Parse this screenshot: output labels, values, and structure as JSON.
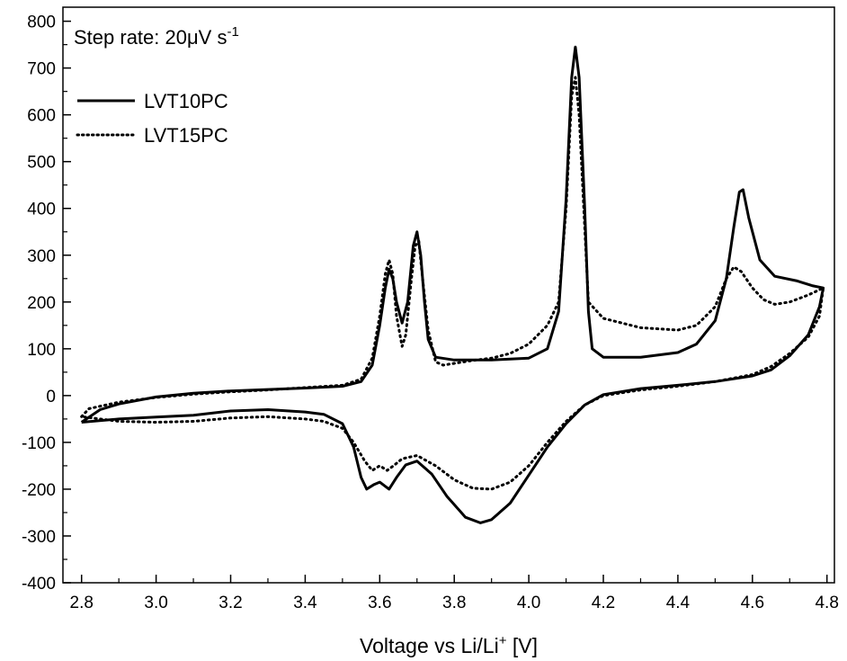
{
  "chart_data": {
    "type": "line",
    "title": "",
    "annotation": {
      "prefix": "Step rate: 20",
      "mu": "μ",
      "unit": "V s",
      "exponent": "-1"
    },
    "xlabel": {
      "prefix": "Voltage vs Li/Li",
      "sup": "+",
      "suffix": " [V]"
    },
    "ylabel": "",
    "xlim": [
      2.75,
      4.82
    ],
    "ylim": [
      -400,
      830
    ],
    "xticks": [
      2.8,
      3.0,
      3.2,
      3.4,
      3.6,
      3.8,
      4.0,
      4.2,
      4.4,
      4.6,
      4.8
    ],
    "xtick_labels": [
      "2.8",
      "3.0",
      "3.2",
      "3.4",
      "3.6",
      "3.8",
      "4.0",
      "4.2",
      "4.4",
      "4.6",
      "4.8"
    ],
    "yticks": [
      -400,
      -300,
      -200,
      -100,
      0,
      100,
      200,
      300,
      400,
      500,
      600,
      700,
      800
    ],
    "ytick_labels": [
      "-400",
      "-300",
      "-200",
      "-100",
      "0",
      "100",
      "200",
      "300",
      "400",
      "500",
      "600",
      "700",
      "800"
    ],
    "grid": false,
    "legend_position": "top-left",
    "series": [
      {
        "name": "LVT10PC",
        "style": "solid",
        "color": "#000000",
        "points": [
          [
            2.8,
            -57
          ],
          [
            2.85,
            -30
          ],
          [
            2.9,
            -18
          ],
          [
            3.0,
            -3
          ],
          [
            3.1,
            5
          ],
          [
            3.2,
            10
          ],
          [
            3.3,
            13
          ],
          [
            3.4,
            16
          ],
          [
            3.5,
            20
          ],
          [
            3.55,
            30
          ],
          [
            3.58,
            65
          ],
          [
            3.6,
            150
          ],
          [
            3.615,
            230
          ],
          [
            3.625,
            270
          ],
          [
            3.635,
            250
          ],
          [
            3.645,
            200
          ],
          [
            3.66,
            155
          ],
          [
            3.675,
            200
          ],
          [
            3.69,
            320
          ],
          [
            3.7,
            350
          ],
          [
            3.71,
            300
          ],
          [
            3.72,
            200
          ],
          [
            3.73,
            120
          ],
          [
            3.75,
            82
          ],
          [
            3.8,
            76
          ],
          [
            3.9,
            76
          ],
          [
            4.0,
            80
          ],
          [
            4.05,
            100
          ],
          [
            4.08,
            180
          ],
          [
            4.1,
            420
          ],
          [
            4.115,
            680
          ],
          [
            4.125,
            745
          ],
          [
            4.135,
            680
          ],
          [
            4.15,
            400
          ],
          [
            4.16,
            180
          ],
          [
            4.17,
            100
          ],
          [
            4.2,
            82
          ],
          [
            4.3,
            82
          ],
          [
            4.4,
            92
          ],
          [
            4.45,
            110
          ],
          [
            4.5,
            160
          ],
          [
            4.53,
            250
          ],
          [
            4.55,
            360
          ],
          [
            4.565,
            435
          ],
          [
            4.575,
            440
          ],
          [
            4.59,
            380
          ],
          [
            4.62,
            290
          ],
          [
            4.66,
            255
          ],
          [
            4.72,
            245
          ],
          [
            4.76,
            235
          ],
          [
            4.79,
            230
          ],
          [
            4.78,
            190
          ],
          [
            4.75,
            130
          ],
          [
            4.7,
            85
          ],
          [
            4.65,
            55
          ],
          [
            4.6,
            42
          ],
          [
            4.5,
            30
          ],
          [
            4.4,
            22
          ],
          [
            4.3,
            15
          ],
          [
            4.2,
            2
          ],
          [
            4.15,
            -20
          ],
          [
            4.1,
            -60
          ],
          [
            4.05,
            -110
          ],
          [
            4.0,
            -170
          ],
          [
            3.95,
            -230
          ],
          [
            3.9,
            -265
          ],
          [
            3.87,
            -272
          ],
          [
            3.83,
            -260
          ],
          [
            3.78,
            -215
          ],
          [
            3.74,
            -168
          ],
          [
            3.7,
            -140
          ],
          [
            3.67,
            -148
          ],
          [
            3.645,
            -175
          ],
          [
            3.625,
            -200
          ],
          [
            3.6,
            -185
          ],
          [
            3.585,
            -190
          ],
          [
            3.565,
            -200
          ],
          [
            3.55,
            -175
          ],
          [
            3.53,
            -110
          ],
          [
            3.5,
            -60
          ],
          [
            3.45,
            -40
          ],
          [
            3.4,
            -35
          ],
          [
            3.3,
            -30
          ],
          [
            3.2,
            -33
          ],
          [
            3.1,
            -42
          ],
          [
            3.0,
            -46
          ],
          [
            2.9,
            -50
          ],
          [
            2.8,
            -57
          ]
        ]
      },
      {
        "name": "LVT15PC",
        "style": "dotted",
        "color": "#000000",
        "points": [
          [
            2.8,
            -45
          ],
          [
            2.82,
            -28
          ],
          [
            2.9,
            -14
          ],
          [
            3.0,
            -4
          ],
          [
            3.1,
            3
          ],
          [
            3.2,
            8
          ],
          [
            3.3,
            12
          ],
          [
            3.4,
            17
          ],
          [
            3.5,
            22
          ],
          [
            3.55,
            35
          ],
          [
            3.58,
            80
          ],
          [
            3.6,
            170
          ],
          [
            3.615,
            260
          ],
          [
            3.625,
            290
          ],
          [
            3.635,
            260
          ],
          [
            3.645,
            170
          ],
          [
            3.66,
            105
          ],
          [
            3.67,
            130
          ],
          [
            3.685,
            250
          ],
          [
            3.695,
            320
          ],
          [
            3.705,
            330
          ],
          [
            3.715,
            250
          ],
          [
            3.73,
            140
          ],
          [
            3.75,
            72
          ],
          [
            3.77,
            65
          ],
          [
            3.85,
            75
          ],
          [
            3.9,
            80
          ],
          [
            3.95,
            90
          ],
          [
            4.0,
            110
          ],
          [
            4.05,
            150
          ],
          [
            4.08,
            200
          ],
          [
            4.1,
            400
          ],
          [
            4.115,
            640
          ],
          [
            4.125,
            680
          ],
          [
            4.135,
            600
          ],
          [
            4.15,
            360
          ],
          [
            4.16,
            200
          ],
          [
            4.2,
            165
          ],
          [
            4.3,
            145
          ],
          [
            4.4,
            140
          ],
          [
            4.45,
            150
          ],
          [
            4.5,
            190
          ],
          [
            4.53,
            250
          ],
          [
            4.55,
            275
          ],
          [
            4.57,
            265
          ],
          [
            4.6,
            230
          ],
          [
            4.63,
            205
          ],
          [
            4.66,
            195
          ],
          [
            4.7,
            200
          ],
          [
            4.75,
            215
          ],
          [
            4.79,
            230
          ],
          [
            4.78,
            170
          ],
          [
            4.75,
            125
          ],
          [
            4.7,
            90
          ],
          [
            4.65,
            62
          ],
          [
            4.6,
            45
          ],
          [
            4.5,
            30
          ],
          [
            4.4,
            20
          ],
          [
            4.3,
            12
          ],
          [
            4.2,
            0
          ],
          [
            4.15,
            -20
          ],
          [
            4.1,
            -55
          ],
          [
            4.05,
            -100
          ],
          [
            4.0,
            -150
          ],
          [
            3.95,
            -185
          ],
          [
            3.9,
            -200
          ],
          [
            3.85,
            -198
          ],
          [
            3.8,
            -180
          ],
          [
            3.75,
            -150
          ],
          [
            3.7,
            -128
          ],
          [
            3.66,
            -135
          ],
          [
            3.64,
            -148
          ],
          [
            3.62,
            -160
          ],
          [
            3.6,
            -150
          ],
          [
            3.58,
            -160
          ],
          [
            3.56,
            -140
          ],
          [
            3.53,
            -100
          ],
          [
            3.5,
            -70
          ],
          [
            3.45,
            -55
          ],
          [
            3.4,
            -50
          ],
          [
            3.3,
            -45
          ],
          [
            3.2,
            -48
          ],
          [
            3.1,
            -55
          ],
          [
            3.0,
            -57
          ],
          [
            2.9,
            -55
          ],
          [
            2.8,
            -45
          ]
        ]
      }
    ]
  }
}
